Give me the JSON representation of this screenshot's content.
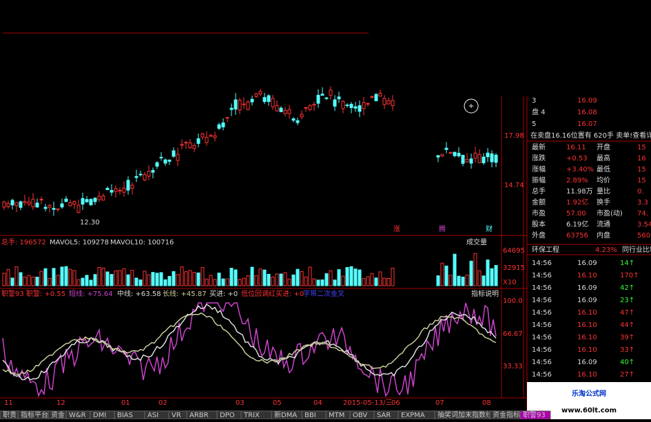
{
  "price_axis": [
    "17.98",
    "14.74"
  ],
  "low_label": "12.30",
  "markers": [
    "涨",
    "腾",
    "财"
  ],
  "volume_header": [
    "总手: 196572",
    "MAVOL5: 109278",
    "MAVOL10: 100716"
  ],
  "volume_button": "成交量",
  "volume_axis": [
    "64695",
    "32915",
    "X10"
  ],
  "indicator_header": [
    "职警93 职警: +0.55",
    "短线: +75.64",
    "中线: +63.58",
    "长线: +45.87",
    "买进: +0",
    "低位回调红买进: +0",
    "字带二次金叉"
  ],
  "indicator_button": "指标说明",
  "indicator_axis": [
    "100.0",
    "66.67",
    "33.33"
  ],
  "time_axis": [
    "11",
    "12",
    "01",
    "02",
    "03",
    "04",
    "05",
    "2015-05-13/三",
    "06",
    "07",
    "08"
  ],
  "tabs": [
    "职责",
    "指标平台",
    "资金",
    "W&R",
    "DMI",
    "BIAS",
    "ASI",
    "VR",
    "ARBR",
    "DPO",
    "TRIX",
    "新DMA",
    "BBI",
    "MTM",
    "OBV",
    "SAR",
    "EXPMA",
    "抽奖词加末指数线",
    "资金指标",
    "职警93"
  ],
  "sell_book": [
    [
      "3",
      "16.09"
    ],
    [
      "盘 4",
      "16.08"
    ],
    [
      "5",
      "16.07"
    ]
  ],
  "status": "在卖盘16.16位置有 620手 卖单!查看详",
  "quote": [
    [
      "最新",
      "16.11",
      "开盘",
      "15"
    ],
    [
      "涨跌",
      "+0.53",
      "最高",
      "16"
    ],
    [
      "涨幅",
      "+3.40%",
      "最低",
      "15"
    ],
    [
      "振幅",
      "2.89%",
      "均价",
      "15"
    ],
    [
      "总手",
      "11.98万",
      "量比",
      "0."
    ],
    [
      "金额",
      "1.92亿",
      "换手",
      "3.3"
    ],
    [
      "市盈",
      "57.00",
      "市盈(动)",
      "74."
    ],
    [
      "股本",
      "6.19亿",
      "流通",
      "3.54"
    ],
    [
      "外盘",
      "63756",
      "内盘",
      "560"
    ]
  ],
  "sector": [
    "环保工程",
    "4.23%",
    "同行业比较"
  ],
  "ticks": [
    [
      "14:56",
      "16.09",
      "14↑"
    ],
    [
      "14:56",
      "16.10",
      "170↑"
    ],
    [
      "14:56",
      "16.09",
      "42↑"
    ],
    [
      "14:56",
      "16.09",
      "23↑"
    ],
    [
      "14:56",
      "16.10",
      "47↑"
    ],
    [
      "14:56",
      "16.10",
      "44↑"
    ],
    [
      "14:56",
      "16.10",
      "39↑"
    ],
    [
      "14:56",
      "16.10",
      "33↑"
    ],
    [
      "14:56",
      "16.09",
      "40↑"
    ],
    [
      "14:56",
      "16.10",
      "27↑"
    ]
  ],
  "watermark": [
    "乐淘公式网",
    "www.60lt.com"
  ]
}
